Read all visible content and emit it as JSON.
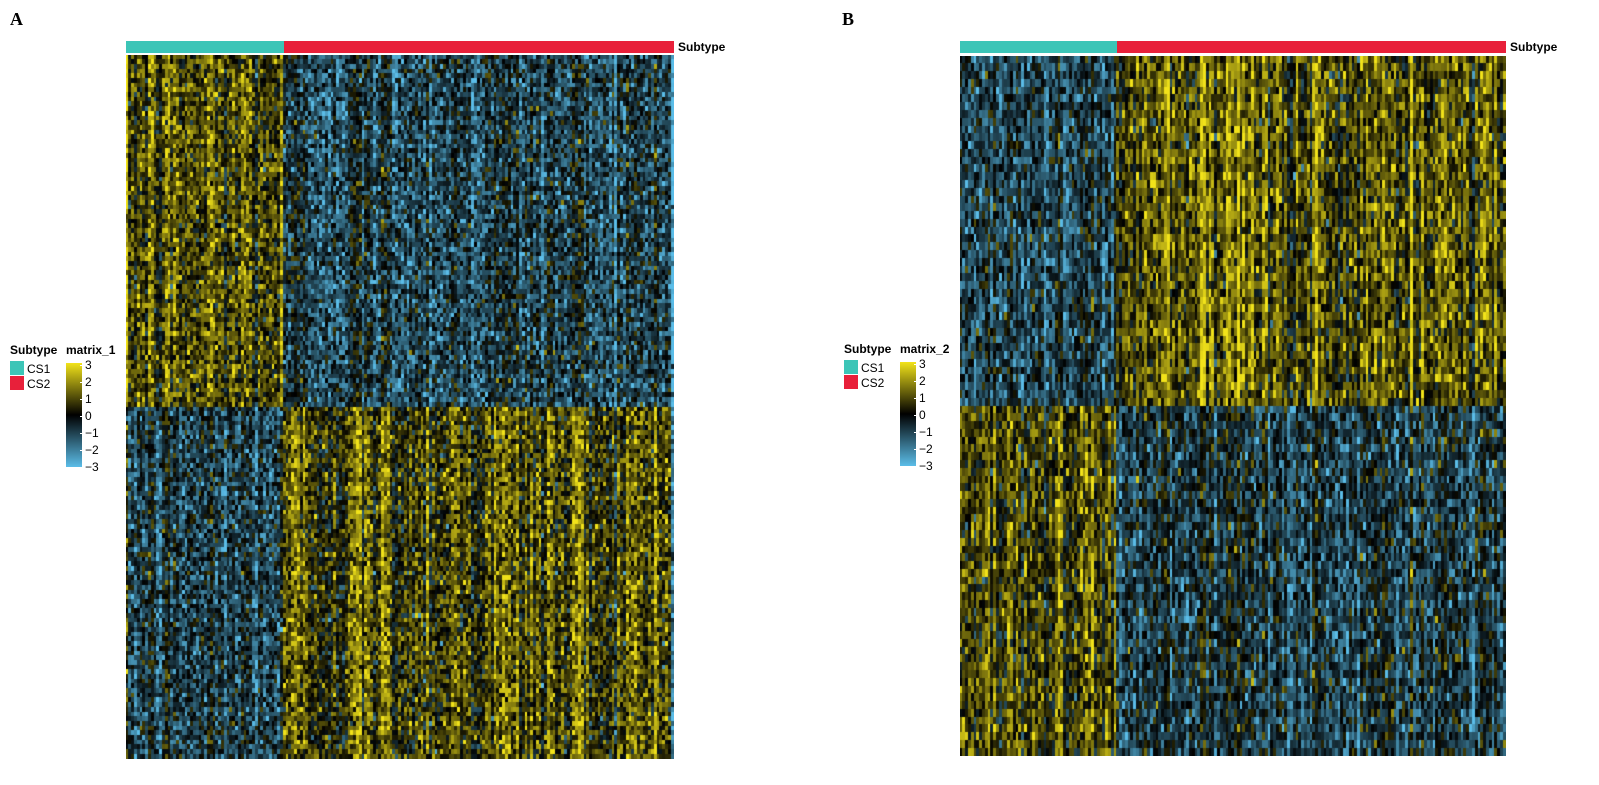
{
  "colors": {
    "CS1": "#3cc5b7",
    "CS2": "#e8203a",
    "scale_high": "#f2e31a",
    "scale_mid": "#000000",
    "scale_low": "#5bbde8"
  },
  "chart_data": [
    {
      "type": "heatmap",
      "panel": "A",
      "annotation_title": "Subtype",
      "annotation": [
        {
          "group": "CS1",
          "fraction": 0.288
        },
        {
          "group": "CS2",
          "fraction": 0.712
        }
      ],
      "subtype_legend": {
        "title": "Subtype",
        "items": [
          "CS1",
          "CS2"
        ]
      },
      "colorbar": {
        "title": "matrix_1",
        "ticks": [
          "3",
          "2",
          "1",
          "0",
          "−1",
          "−2",
          "−3"
        ],
        "range": [
          -3,
          3
        ]
      },
      "columns": 195,
      "rows": 150,
      "row_split_fraction": 0.5,
      "pattern": {
        "top_CS1": "high",
        "top_CS2": "low",
        "bottom_CS1": "low",
        "bottom_CS2": "high"
      }
    },
    {
      "type": "heatmap",
      "panel": "B",
      "annotation_title": "Subtype",
      "annotation": [
        {
          "group": "CS1",
          "fraction": 0.288
        },
        {
          "group": "CS2",
          "fraction": 0.712
        }
      ],
      "subtype_legend": {
        "title": "Subtype",
        "items": [
          "CS1",
          "CS2"
        ]
      },
      "colorbar": {
        "title": "matrix_2",
        "ticks": [
          "3",
          "2",
          "1",
          "0",
          "−1",
          "−2",
          "−3"
        ],
        "range": [
          -3,
          3
        ]
      },
      "columns": 195,
      "rows": 90,
      "row_split_fraction": 0.5,
      "pattern": {
        "top_CS1": "low",
        "top_CS2": "high",
        "bottom_CS1": "high",
        "bottom_CS2": "low"
      }
    }
  ]
}
